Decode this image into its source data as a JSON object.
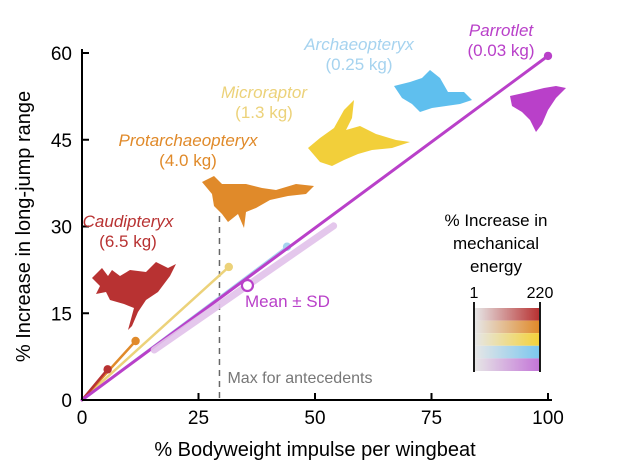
{
  "chart_data": {
    "type": "line",
    "xlabel": "% Bodyweight impulse per wingbeat",
    "ylabel": "% Increase in long-jump range",
    "xlim": [
      0,
      100
    ],
    "ylim": [
      0,
      60
    ],
    "xticks": [
      0,
      25,
      50,
      75,
      100
    ],
    "yticks": [
      0,
      15,
      30,
      45,
      60
    ],
    "series": [
      {
        "name": "Caudipteryx",
        "mass": "(6.5 kg)",
        "color": "#b83232",
        "x": [
          0,
          5.5
        ],
        "y": [
          0,
          5.3
        ]
      },
      {
        "name": "Protarchaeopteryx",
        "mass": "(4.0 kg)",
        "color": "#e08a2a",
        "x": [
          0,
          11.5
        ],
        "y": [
          0,
          10.2
        ]
      },
      {
        "name": "Microraptor",
        "mass": "(1.3 kg)",
        "color": "#ecd27a",
        "x": [
          0,
          31.5
        ],
        "y": [
          0,
          23
        ]
      },
      {
        "name": "Archaeopteryx",
        "mass": "(0.25 kg)",
        "color": "#a6d3ef",
        "x": [
          0,
          44
        ],
        "y": [
          0,
          26.5
        ]
      },
      {
        "name": "Parrotlet",
        "mass": "(0.03 kg)",
        "color": "#b940c9",
        "x": [
          0,
          100
        ],
        "y": [
          0,
          59.5
        ]
      }
    ],
    "annotations": {
      "mean_sd": {
        "label": "Mean ± SD",
        "x": 35.5,
        "y": 19.8,
        "sd_x": [
          15.5,
          54
        ],
        "color": "#b940c9"
      },
      "max_line": {
        "label": "Max for antecedents",
        "x": 29.5
      }
    },
    "legend": {
      "title_lines": [
        "% Increase in",
        "mechanical",
        "energy"
      ],
      "min_label": "1",
      "max_label": "220",
      "colors": [
        "#b83232",
        "#e08a2a",
        "#f4d23a",
        "#7cc7ef",
        "#c476d8"
      ]
    }
  }
}
